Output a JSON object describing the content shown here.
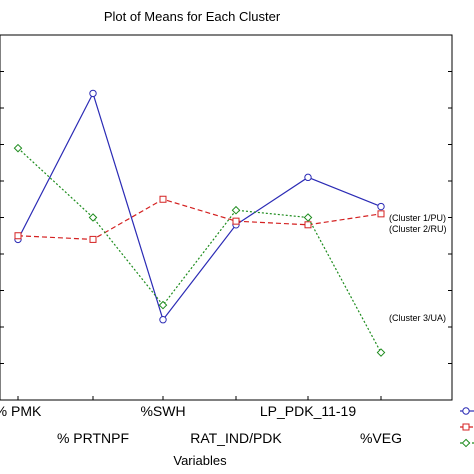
{
  "chart_data": {
    "type": "line",
    "title": "Plot of Means for Each Cluster",
    "xlabel": "Variables",
    "ylabel": "",
    "categories": [
      "% PMK",
      "% PRTNPF",
      "%SWH",
      "RAT_IND/PDK",
      "LP_PDK_11-19",
      "%VEG"
    ],
    "ylim": [
      0,
      10
    ],
    "grid": false,
    "legend": "bottom-right",
    "series": [
      {
        "name": "Cluster 1/PU",
        "annotation": "(Cluster 1/PU)",
        "color": "#2b2bb5",
        "line_style": "solid",
        "marker": "circle",
        "values": [
          4.4,
          8.4,
          2.2,
          4.8,
          6.1,
          5.3
        ]
      },
      {
        "name": "Cluster 2/RU",
        "annotation": "(Cluster 2/RU)",
        "color": "#d42020",
        "line_style": "dashed",
        "marker": "square",
        "values": [
          4.5,
          4.4,
          5.5,
          4.9,
          4.8,
          5.1
        ]
      },
      {
        "name": "Cluster 3/UA",
        "annotation": "(Cluster 3/UA)",
        "color": "#1e8c1e",
        "line_style": "dotted",
        "marker": "diamond",
        "values": [
          6.9,
          5.0,
          2.6,
          5.2,
          5.0,
          1.3
        ]
      }
    ]
  }
}
